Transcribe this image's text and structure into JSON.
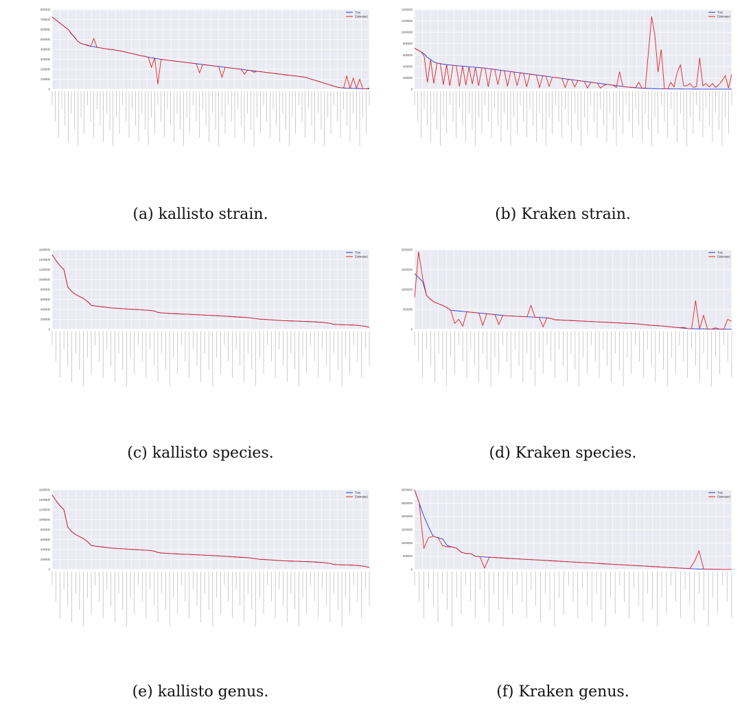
{
  "chart_data": [
    {
      "type": "line",
      "id": "a",
      "caption": "(a) kallisto strain.",
      "legend": [
        "True",
        "Estimated"
      ],
      "colors": {
        "True": "#2233dd",
        "Estimated": "#dd2222"
      },
      "ylim": [
        0,
        800000
      ],
      "yticks": [
        "0",
        "100000",
        "200000",
        "300000",
        "400000",
        "500000",
        "600000",
        "700000",
        "800000"
      ],
      "true": [
        725000,
        700000,
        675000,
        650000,
        625000,
        600000,
        560000,
        520000,
        480000,
        460000,
        450000,
        440000,
        430000,
        428000,
        420000,
        415000,
        410000,
        405000,
        400000,
        398000,
        392000,
        386000,
        380000,
        373000,
        365000,
        358000,
        350000,
        342000,
        335000,
        330000,
        322000,
        315000,
        310000,
        305000,
        300000,
        296000,
        292000,
        288000,
        284000,
        280000,
        276000,
        272000,
        268000,
        264000,
        260000,
        256000,
        252000,
        248000,
        244000,
        240000,
        236000,
        232000,
        228000,
        224000,
        220000,
        216000,
        212000,
        208000,
        204000,
        200000,
        196000,
        192000,
        188000,
        184000,
        180000,
        176000,
        172000,
        168000,
        164000,
        160000,
        156000,
        152000,
        148000,
        144000,
        140000,
        136000,
        132000,
        128000,
        124000,
        120000,
        110000,
        100000,
        90000,
        80000,
        70000,
        60000,
        50000,
        40000,
        30000,
        20000,
        15000,
        12000,
        10000,
        9000,
        8000,
        7000,
        6000,
        5000,
        4000,
        3000
      ],
      "estimated": [
        725000,
        700000,
        675000,
        650000,
        625000,
        600000,
        555000,
        525000,
        480000,
        460000,
        450000,
        445000,
        430000,
        510000,
        420000,
        415000,
        410000,
        405000,
        400000,
        398000,
        392000,
        386000,
        380000,
        373000,
        365000,
        358000,
        350000,
        342000,
        335000,
        330000,
        322000,
        220000,
        315000,
        50000,
        300000,
        296000,
        292000,
        288000,
        284000,
        280000,
        276000,
        272000,
        268000,
        264000,
        260000,
        256000,
        165000,
        248000,
        244000,
        240000,
        236000,
        232000,
        228000,
        120000,
        220000,
        216000,
        212000,
        208000,
        204000,
        200000,
        150000,
        192000,
        188000,
        170000,
        180000,
        176000,
        172000,
        168000,
        164000,
        160000,
        156000,
        152000,
        148000,
        144000,
        140000,
        136000,
        132000,
        128000,
        124000,
        120000,
        110000,
        100000,
        90000,
        80000,
        70000,
        60000,
        50000,
        40000,
        30000,
        20000,
        15000,
        12000,
        130000,
        9000,
        110000,
        7000,
        100000,
        5000,
        4000,
        10000
      ]
    },
    {
      "type": "line",
      "id": "b",
      "caption": "(b) Kraken strain.",
      "legend": [
        "True",
        "Estimated"
      ],
      "colors": {
        "True": "#2233dd",
        "Estimated": "#dd2222"
      },
      "ylim": [
        0,
        1400000
      ],
      "yticks": [
        "0",
        "200000",
        "400000",
        "600000",
        "800000",
        "1000000",
        "1200000",
        "1400000"
      ],
      "true": [
        720000,
        690000,
        660000,
        620000,
        560000,
        520000,
        480000,
        460000,
        450000,
        440000,
        430000,
        425000,
        420000,
        415000,
        410000,
        405000,
        400000,
        395000,
        390000,
        385000,
        380000,
        375000,
        370000,
        362000,
        355000,
        348000,
        340000,
        332000,
        325000,
        318000,
        310000,
        302000,
        295000,
        288000,
        280000,
        272000,
        265000,
        258000,
        250000,
        242000,
        235000,
        228000,
        220000,
        212000,
        205000,
        198000,
        190000,
        182000,
        175000,
        168000,
        160000,
        152000,
        145000,
        138000,
        130000,
        122000,
        115000,
        108000,
        100000,
        92000,
        85000,
        78000,
        70000,
        62000,
        55000,
        48000,
        40000,
        35000,
        30000,
        26000,
        22000,
        18000,
        15000,
        12000,
        10000,
        9000,
        8000,
        7000,
        6000,
        5000,
        4500,
        4000,
        3500,
        3000,
        2500,
        2000,
        1800,
        1600,
        1400,
        1200,
        1000,
        900,
        800,
        700,
        600,
        500,
        400,
        300,
        200,
        100
      ],
      "estimated": [
        720000,
        690000,
        660000,
        580000,
        120000,
        520000,
        100000,
        460000,
        450000,
        80000,
        430000,
        60000,
        420000,
        415000,
        50000,
        405000,
        70000,
        395000,
        90000,
        385000,
        60000,
        375000,
        370000,
        40000,
        355000,
        348000,
        80000,
        332000,
        325000,
        50000,
        310000,
        302000,
        60000,
        288000,
        280000,
        40000,
        265000,
        258000,
        250000,
        30000,
        235000,
        228000,
        50000,
        212000,
        205000,
        198000,
        190000,
        30000,
        175000,
        168000,
        40000,
        152000,
        145000,
        138000,
        20000,
        122000,
        115000,
        108000,
        20000,
        60000,
        85000,
        78000,
        70000,
        30000,
        310000,
        48000,
        40000,
        35000,
        30000,
        26000,
        120000,
        18000,
        15000,
        650000,
        1280000,
        950000,
        300000,
        700000,
        6000,
        5000,
        120000,
        40000,
        300000,
        430000,
        60000,
        60000,
        100000,
        30000,
        50000,
        550000,
        60000,
        100000,
        40000,
        100000,
        30000,
        80000,
        150000,
        240000,
        20000,
        260000
      ]
    },
    {
      "type": "line",
      "id": "c",
      "caption": "(c) kallisto species.",
      "legend": [
        "True",
        "Estimated"
      ],
      "colors": {
        "True": "#2233dd",
        "Estimated": "#dd2222"
      },
      "ylim": [
        0,
        1600000
      ],
      "yticks": [
        "0",
        "200000",
        "400000",
        "600000",
        "800000",
        "1000000",
        "1200000",
        "1400000",
        "1600000"
      ],
      "true": [
        1500000,
        1380000,
        1280000,
        1200000,
        850000,
        760000,
        700000,
        660000,
        620000,
        560000,
        480000,
        470000,
        460000,
        450000,
        440000,
        430000,
        425000,
        420000,
        415000,
        410000,
        405000,
        400000,
        395000,
        390000,
        385000,
        380000,
        370000,
        340000,
        330000,
        325000,
        320000,
        315000,
        312000,
        308000,
        305000,
        302000,
        298000,
        294000,
        290000,
        286000,
        282000,
        278000,
        274000,
        270000,
        265000,
        260000,
        255000,
        250000,
        245000,
        240000,
        235000,
        225000,
        215000,
        205000,
        200000,
        195000,
        190000,
        185000,
        180000,
        175000,
        172000,
        169000,
        166000,
        163000,
        160000,
        157000,
        154000,
        150000,
        145000,
        140000,
        130000,
        120000,
        100000,
        95000,
        92000,
        90000,
        88000,
        85000,
        80000,
        70000,
        60000,
        40000
      ],
      "estimated": [
        1500000,
        1380000,
        1280000,
        1200000,
        850000,
        760000,
        700000,
        660000,
        620000,
        560000,
        480000,
        470000,
        460000,
        450000,
        440000,
        430000,
        425000,
        420000,
        415000,
        410000,
        405000,
        400000,
        395000,
        390000,
        385000,
        380000,
        370000,
        340000,
        330000,
        325000,
        320000,
        315000,
        312000,
        308000,
        305000,
        302000,
        298000,
        294000,
        290000,
        286000,
        282000,
        278000,
        274000,
        270000,
        265000,
        260000,
        255000,
        250000,
        245000,
        240000,
        235000,
        225000,
        215000,
        205000,
        200000,
        195000,
        190000,
        185000,
        180000,
        175000,
        172000,
        169000,
        166000,
        163000,
        160000,
        157000,
        154000,
        150000,
        145000,
        140000,
        130000,
        120000,
        100000,
        95000,
        92000,
        90000,
        88000,
        85000,
        80000,
        70000,
        60000,
        40000
      ]
    },
    {
      "type": "line",
      "id": "d",
      "caption": "(d) Kraken species.",
      "legend": [
        "True",
        "Estimated"
      ],
      "colors": {
        "True": "#2233dd",
        "Estimated": "#dd2222"
      },
      "ylim": [
        0,
        2000000
      ],
      "yticks": [
        "0",
        "500000",
        "1000000",
        "1500000",
        "2000000"
      ],
      "true": [
        1400000,
        1300000,
        1200000,
        850000,
        750000,
        680000,
        640000,
        600000,
        550000,
        480000,
        470000,
        460000,
        450000,
        440000,
        430000,
        420000,
        410000,
        400000,
        390000,
        380000,
        370000,
        360000,
        350000,
        340000,
        335000,
        330000,
        325000,
        320000,
        315000,
        310000,
        305000,
        300000,
        295000,
        290000,
        270000,
        240000,
        235000,
        230000,
        225000,
        220000,
        215000,
        210000,
        205000,
        200000,
        195000,
        190000,
        185000,
        180000,
        175000,
        170000,
        165000,
        160000,
        155000,
        150000,
        145000,
        140000,
        130000,
        120000,
        110000,
        100000,
        95000,
        90000,
        80000,
        70000,
        60000,
        50000,
        40000,
        30000,
        20000,
        15000,
        12000,
        10000,
        8000,
        6000,
        5000,
        4000,
        3000,
        2000,
        1000,
        500
      ],
      "estimated": [
        800000,
        1950000,
        1300000,
        850000,
        750000,
        680000,
        640000,
        600000,
        550000,
        480000,
        150000,
        250000,
        80000,
        440000,
        430000,
        420000,
        410000,
        100000,
        390000,
        380000,
        370000,
        120000,
        350000,
        340000,
        335000,
        330000,
        325000,
        320000,
        315000,
        600000,
        305000,
        300000,
        60000,
        290000,
        270000,
        240000,
        235000,
        230000,
        225000,
        220000,
        215000,
        210000,
        205000,
        200000,
        195000,
        190000,
        185000,
        180000,
        175000,
        170000,
        165000,
        160000,
        155000,
        150000,
        145000,
        140000,
        130000,
        120000,
        110000,
        100000,
        95000,
        90000,
        80000,
        70000,
        60000,
        50000,
        40000,
        50000,
        20000,
        15000,
        720000,
        10000,
        350000,
        6000,
        5000,
        40000,
        3000,
        2000,
        250000,
        200000
      ]
    },
    {
      "type": "line",
      "id": "e",
      "caption": "(e) kallisto genus.",
      "legend": [
        "True",
        "Estimated"
      ],
      "colors": {
        "True": "#2233dd",
        "Estimated": "#dd2222"
      },
      "ylim": [
        0,
        1600000
      ],
      "yticks": [
        "0",
        "200000",
        "400000",
        "600000",
        "800000",
        "1000000",
        "1200000",
        "1400000",
        "1600000"
      ],
      "true": [
        1500000,
        1380000,
        1280000,
        1200000,
        850000,
        760000,
        700000,
        660000,
        620000,
        560000,
        480000,
        470000,
        460000,
        450000,
        440000,
        430000,
        425000,
        420000,
        415000,
        410000,
        405000,
        400000,
        395000,
        390000,
        385000,
        380000,
        370000,
        340000,
        330000,
        325000,
        320000,
        315000,
        312000,
        308000,
        305000,
        302000,
        298000,
        294000,
        290000,
        286000,
        282000,
        278000,
        274000,
        270000,
        265000,
        260000,
        255000,
        250000,
        245000,
        240000,
        235000,
        225000,
        215000,
        205000,
        200000,
        195000,
        190000,
        185000,
        180000,
        175000,
        172000,
        169000,
        166000,
        163000,
        160000,
        157000,
        154000,
        150000,
        145000,
        140000,
        130000,
        120000,
        100000,
        95000,
        92000,
        90000,
        88000,
        85000,
        80000,
        70000,
        60000,
        40000
      ],
      "estimated": [
        1500000,
        1380000,
        1280000,
        1200000,
        850000,
        760000,
        700000,
        660000,
        620000,
        560000,
        480000,
        470000,
        460000,
        450000,
        440000,
        430000,
        425000,
        420000,
        415000,
        410000,
        405000,
        400000,
        395000,
        390000,
        385000,
        380000,
        370000,
        340000,
        330000,
        325000,
        320000,
        315000,
        312000,
        308000,
        305000,
        302000,
        298000,
        294000,
        290000,
        286000,
        282000,
        278000,
        274000,
        270000,
        265000,
        260000,
        255000,
        250000,
        245000,
        240000,
        235000,
        225000,
        215000,
        205000,
        200000,
        195000,
        190000,
        185000,
        180000,
        175000,
        172000,
        169000,
        166000,
        163000,
        160000,
        157000,
        154000,
        150000,
        145000,
        140000,
        130000,
        120000,
        100000,
        95000,
        92000,
        90000,
        88000,
        85000,
        80000,
        70000,
        60000,
        40000
      ]
    },
    {
      "type": "line",
      "id": "f",
      "caption": "(f) Kraken genus.",
      "legend": [
        "True",
        "Estimated"
      ],
      "colors": {
        "True": "#2233dd",
        "Estimated": "#dd2222"
      },
      "ylim": [
        0,
        3000000
      ],
      "yticks": [
        "0",
        "500000",
        "1000000",
        "1500000",
        "2000000",
        "2500000",
        "3000000"
      ],
      "true": [
        3000000,
        2500000,
        2000000,
        1600000,
        1250000,
        1200000,
        1150000,
        900000,
        850000,
        800000,
        650000,
        600000,
        600000,
        500000,
        480000,
        470000,
        460000,
        450000,
        440000,
        430000,
        420000,
        410000,
        400000,
        390000,
        380000,
        370000,
        360000,
        350000,
        340000,
        330000,
        320000,
        310000,
        300000,
        290000,
        280000,
        270000,
        260000,
        250000,
        240000,
        230000,
        220000,
        210000,
        200000,
        190000,
        180000,
        170000,
        160000,
        150000,
        140000,
        130000,
        120000,
        110000,
        100000,
        90000,
        80000,
        70000,
        60000,
        50000,
        40000,
        30000,
        20000,
        15000,
        10000,
        8000,
        6000,
        4000,
        2000,
        1000,
        500
      ],
      "estimated": [
        3000000,
        2500000,
        800000,
        1200000,
        1250000,
        1200000,
        900000,
        850000,
        850000,
        800000,
        650000,
        600000,
        600000,
        500000,
        480000,
        50000,
        460000,
        450000,
        440000,
        430000,
        420000,
        410000,
        400000,
        390000,
        380000,
        370000,
        360000,
        350000,
        340000,
        330000,
        320000,
        310000,
        300000,
        290000,
        280000,
        270000,
        260000,
        250000,
        240000,
        230000,
        220000,
        210000,
        200000,
        190000,
        180000,
        170000,
        160000,
        150000,
        140000,
        130000,
        120000,
        110000,
        100000,
        90000,
        80000,
        70000,
        60000,
        50000,
        40000,
        30000,
        300000,
        700000,
        10000,
        8000,
        6000,
        4000,
        2000,
        1000,
        500
      ]
    }
  ]
}
